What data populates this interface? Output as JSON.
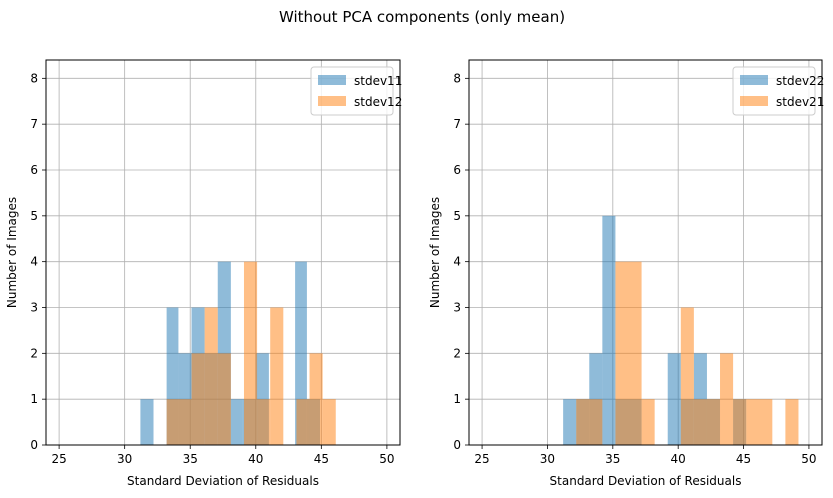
{
  "figure_title": "Without PCA components (only mean)",
  "colors": {
    "blue": "#1f77b4",
    "orange": "#ff7f0e",
    "grid": "#b0b0b0"
  },
  "chart_data": [
    {
      "type": "histogram",
      "xlabel": "Standard Deviation of Residuals",
      "ylabel": "Number of Images",
      "xlim": [
        24,
        51
      ],
      "ylim": [
        0,
        8.4
      ],
      "xticks": [
        25,
        30,
        35,
        40,
        45,
        50
      ],
      "yticks": [
        0,
        1,
        2,
        3,
        4,
        5,
        6,
        7,
        8
      ],
      "grid": true,
      "legend_position": "top-right",
      "alpha": 0.5,
      "series": [
        {
          "name": "stdev11",
          "color": "#1f77b4",
          "bins": [
            [
              31.2,
              32.2,
              1
            ],
            [
              33.2,
              34.1,
              3
            ],
            [
              34.1,
              35.1,
              2
            ],
            [
              35.1,
              36.1,
              3
            ],
            [
              36.1,
              37.1,
              2
            ],
            [
              37.1,
              38.1,
              4
            ],
            [
              38.1,
              39.0,
              1
            ],
            [
              39.0,
              40.0,
              1
            ],
            [
              40.0,
              41.0,
              2
            ],
            [
              43.0,
              43.9,
              4
            ],
            [
              43.9,
              44.9,
              1
            ]
          ]
        },
        {
          "name": "stdev12",
          "color": "#ff7f0e",
          "bins": [
            [
              33.2,
              35.1,
              1
            ],
            [
              35.1,
              36.1,
              2
            ],
            [
              36.1,
              37.1,
              3
            ],
            [
              37.1,
              38.1,
              2
            ],
            [
              39.1,
              40.1,
              4
            ],
            [
              40.1,
              41.1,
              1
            ],
            [
              41.1,
              42.1,
              3
            ],
            [
              43.1,
              44.1,
              1
            ],
            [
              44.1,
              45.1,
              2
            ],
            [
              45.1,
              46.1,
              1
            ]
          ]
        }
      ]
    },
    {
      "type": "histogram",
      "xlabel": "Standard Deviation of Residuals",
      "ylabel": "Number of Images",
      "xlim": [
        24,
        51
      ],
      "ylim": [
        0,
        8.4
      ],
      "xticks": [
        25,
        30,
        35,
        40,
        45,
        50
      ],
      "yticks": [
        0,
        1,
        2,
        3,
        4,
        5,
        6,
        7,
        8
      ],
      "grid": true,
      "legend_position": "top-right",
      "alpha": 0.5,
      "series": [
        {
          "name": "stdev22",
          "color": "#1f77b4",
          "bins": [
            [
              31.2,
              32.2,
              1
            ],
            [
              32.2,
              33.2,
              1
            ],
            [
              33.2,
              34.2,
              2
            ],
            [
              34.2,
              35.2,
              5
            ],
            [
              35.2,
              37.2,
              1
            ],
            [
              39.2,
              40.2,
              2
            ],
            [
              40.2,
              41.2,
              1
            ],
            [
              41.2,
              42.2,
              2
            ],
            [
              42.2,
              43.2,
              1
            ],
            [
              44.2,
              45.2,
              1
            ]
          ]
        },
        {
          "name": "stdev21",
          "color": "#ff7f0e",
          "bins": [
            [
              32.2,
              34.2,
              1
            ],
            [
              35.2,
              37.2,
              4
            ],
            [
              37.2,
              38.2,
              1
            ],
            [
              40.2,
              41.2,
              3
            ],
            [
              41.2,
              42.2,
              1
            ],
            [
              42.2,
              43.2,
              1
            ],
            [
              43.2,
              44.2,
              2
            ],
            [
              44.2,
              45.2,
              1
            ],
            [
              45.2,
              47.2,
              1
            ],
            [
              48.2,
              49.2,
              1
            ]
          ]
        }
      ]
    }
  ]
}
